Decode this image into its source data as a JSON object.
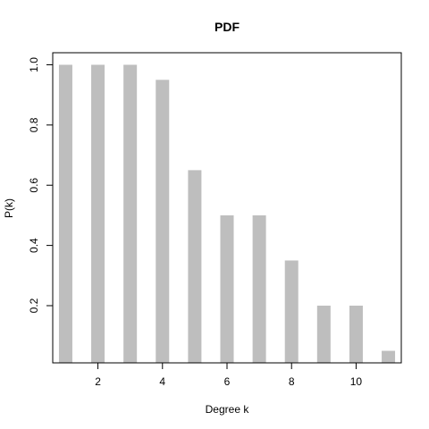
{
  "chart_data": {
    "type": "bar",
    "title": "PDF",
    "xlabel": "Degree k",
    "ylabel": "P(k)",
    "x": [
      1,
      2,
      3,
      4,
      5,
      6,
      7,
      8,
      9,
      10,
      11
    ],
    "values": [
      1.0,
      1.0,
      1.0,
      0.95,
      0.65,
      0.5,
      0.5,
      0.35,
      0.2,
      0.2,
      0.05
    ],
    "xlim": [
      0.6,
      11.4
    ],
    "ylim": [
      0.01,
      1.04
    ],
    "xticks": [
      2,
      4,
      6,
      8,
      10
    ],
    "yticks": [
      0.2,
      0.4,
      0.6,
      0.8,
      1.0
    ],
    "ytick_labels": [
      "0.2",
      "0.4",
      "0.6",
      "0.8",
      "1.0"
    ],
    "bar_color": "#bebebe",
    "grid": false,
    "legend": "none"
  }
}
